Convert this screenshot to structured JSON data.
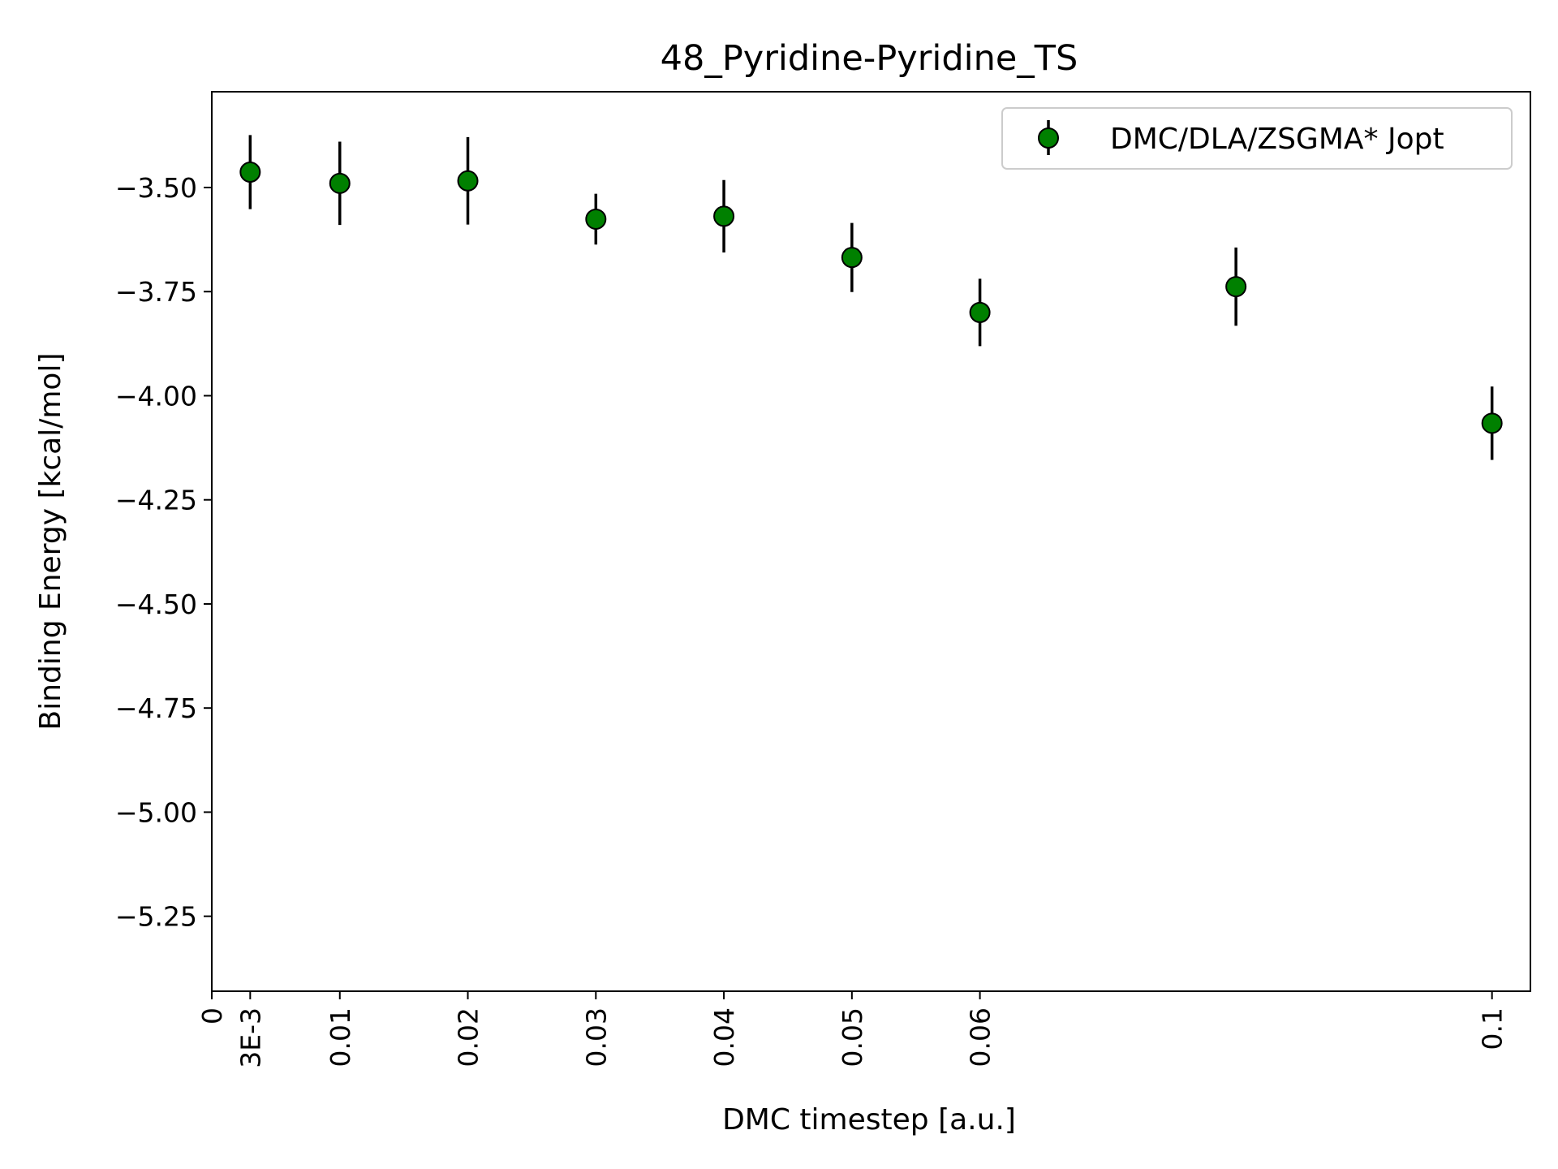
{
  "chart_data": {
    "type": "scatter",
    "title": "48_Pyridine-Pyridine_TS",
    "xlabel": "DMC timestep [a.u.]",
    "ylabel": "Binding Energy [kcal/mol]",
    "xlim": [
      0,
      0.103
    ],
    "ylim": [
      -5.43,
      -3.27
    ],
    "x_ticks": [
      {
        "value": 0,
        "label": "0"
      },
      {
        "value": 0.003,
        "label": "3E-3"
      },
      {
        "value": 0.01,
        "label": "0.01"
      },
      {
        "value": 0.02,
        "label": "0.02"
      },
      {
        "value": 0.03,
        "label": "0.03"
      },
      {
        "value": 0.04,
        "label": "0.04"
      },
      {
        "value": 0.05,
        "label": "0.05"
      },
      {
        "value": 0.06,
        "label": "0.06"
      },
      {
        "value": 0.1,
        "label": "0.1"
      }
    ],
    "y_ticks": [
      {
        "value": -3.5,
        "label": "−3.50"
      },
      {
        "value": -3.75,
        "label": "−3.75"
      },
      {
        "value": -4.0,
        "label": "−4.00"
      },
      {
        "value": -4.25,
        "label": "−4.25"
      },
      {
        "value": -4.5,
        "label": "−4.50"
      },
      {
        "value": -4.75,
        "label": "−4.75"
      },
      {
        "value": -5.0,
        "label": "−5.00"
      },
      {
        "value": -5.25,
        "label": "−5.25"
      }
    ],
    "grid": false,
    "legend_position": "top-right",
    "series": [
      {
        "name": "DMC/DLA/ZSGMA* Jopt",
        "color": "#008000",
        "edge_color": "#000000",
        "error_color": "#000000",
        "x": [
          0.003,
          0.01,
          0.02,
          0.03,
          0.04,
          0.05,
          0.06,
          0.08,
          0.1
        ],
        "y": [
          -3.463,
          -3.49,
          -3.484,
          -3.576,
          -3.569,
          -3.668,
          -3.8,
          -3.738,
          -4.066
        ],
        "yerr": [
          0.089,
          0.1,
          0.105,
          0.061,
          0.087,
          0.083,
          0.081,
          0.094,
          0.088
        ]
      }
    ]
  }
}
